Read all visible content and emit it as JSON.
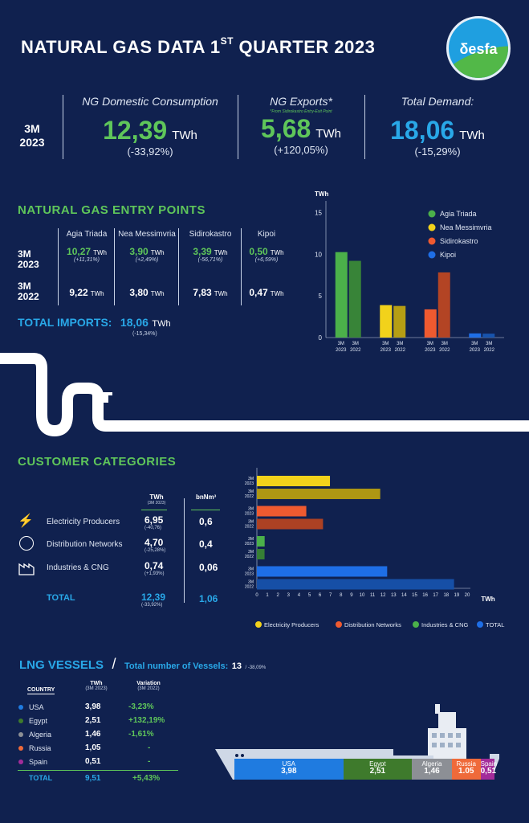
{
  "header": {
    "title_pre": "NATURAL GAS DATA 1",
    "title_sup": "ST",
    "title_post": " QUARTER 2023",
    "logo_text": "δesfa"
  },
  "kpis": {
    "period": "3M 2023",
    "items": [
      {
        "label": "NG Domestic Consumption",
        "note": "",
        "value": "12,39",
        "unit": "TWh",
        "variation": "(-33,92%)",
        "color": "#5fc65a"
      },
      {
        "label": "NG Exports*",
        "note": "*From Sidirokastro Entry-Exit Point",
        "value": "5,68",
        "unit": "TWh",
        "variation": "(+120,05%)",
        "color": "#5fc65a"
      },
      {
        "label": "Total Demand:",
        "note": "",
        "value": "18,06",
        "unit": "TWh",
        "variation": "(-15,29%)",
        "color": "#29a8e8"
      }
    ]
  },
  "entry_points": {
    "title": "NATURAL GAS ENTRY POINTS",
    "columns": [
      "Agia Triada",
      "Nea Messimvria",
      "Sidirokastro",
      "Kipoi"
    ],
    "rows": [
      {
        "label": "3M 2023",
        "values": [
          "10,27",
          "3,90",
          "3,39",
          "0,50"
        ],
        "variations": [
          "(+11,31%)",
          "(+2,49%)",
          "(-56,71%)",
          "(+6,59%)"
        ]
      },
      {
        "label": "3M 2022",
        "values": [
          "9,22",
          "3,80",
          "7,83",
          "0,47"
        ],
        "variations": [
          "",
          "",
          "",
          ""
        ]
      }
    ],
    "unit": "TWh",
    "total_label": "TOTAL IMPORTS:",
    "total_value": "18,06",
    "total_unit": "TWh",
    "total_variation": "(-15,34%)"
  },
  "customers": {
    "title": "CUSTOMER CATEGORIES",
    "col_twh": "TWh",
    "col_twh_sub": "(3M 2023)",
    "col_bnm": "bnNm³",
    "rows": [
      {
        "name": "Electricity Producers",
        "icon": "power-tower-icon",
        "twh": "6,95",
        "variation": "(-40,76)",
        "bnm": "0,6"
      },
      {
        "name": "Distribution Networks",
        "icon": "globe-network-icon",
        "twh": "4,70",
        "variation": "(-25,28%)",
        "bnm": "0,4"
      },
      {
        "name": "Industries & CNG",
        "icon": "factory-icon",
        "twh": "0,74",
        "variation": "(+1,93%)",
        "bnm": "0,06"
      }
    ],
    "total_label": "TOTAL",
    "total_twh": "12,39",
    "total_variation": "(-33,92%)",
    "total_bnm": "1,06"
  },
  "lng": {
    "title": "LNG VESSELS",
    "subtitle": "Total number of Vessels:",
    "vessels": "13",
    "vessels_var": "/ -38,09%",
    "col_country": "COUNTRY",
    "col_twh": "TWh",
    "col_twh_sub": "(3M 2023)",
    "col_var": "Variation",
    "col_var_sub": "(3M 2022)",
    "rows": [
      {
        "country": "USA",
        "twh": "3,98",
        "variation": "-3,23%",
        "color": "#1f7be0",
        "hull_value": "3,98"
      },
      {
        "country": "Egypt",
        "twh": "2,51",
        "variation": "+132,19%",
        "color": "#3e7a2c",
        "hull_value": "2,51"
      },
      {
        "country": "Algeria",
        "twh": "1,46",
        "variation": "-1,61%",
        "color": "#8c8f95",
        "hull_value": "1,46"
      },
      {
        "country": "Russia",
        "twh": "1,05",
        "variation": "-",
        "color": "#ef6a3a",
        "hull_value": "1.05"
      },
      {
        "country": "Spain",
        "twh": "0,51",
        "variation": "-",
        "color": "#a32c9a",
        "hull_value": "0,51"
      }
    ],
    "total_label": "TOTAL",
    "total_twh": "9,51",
    "total_var": "+5,43%"
  },
  "chart_data": [
    {
      "type": "bar",
      "ylabel": "TWh",
      "ylim": [
        0,
        17
      ],
      "yticks": [
        0,
        5,
        10,
        15
      ],
      "categories": [
        "Agia Triada",
        "Nea Messimvria",
        "Sidirokastro",
        "Kipoi"
      ],
      "period_labels": [
        "3M",
        "3M",
        "2023",
        "2022"
      ],
      "series": [
        {
          "name": "3M 2023",
          "values": [
            10.27,
            3.9,
            3.39,
            0.5
          ]
        },
        {
          "name": "3M 2022",
          "values": [
            9.22,
            3.8,
            7.83,
            0.47
          ]
        }
      ],
      "colors": [
        "#4bb04a",
        "#f2d21b",
        "#ef5a30",
        "#1e6ee6"
      ],
      "legend": [
        "Agia Triada",
        "Nea Messimvria",
        "Sidirokastro",
        "Kipoi"
      ],
      "legend_position": "top-right"
    },
    {
      "type": "bar",
      "orientation": "horizontal",
      "xlabel": "TWh",
      "xlim": [
        0,
        20
      ],
      "xticks": [
        0,
        1,
        2,
        3,
        4,
        5,
        6,
        7,
        8,
        9,
        10,
        11,
        12,
        13,
        14,
        15,
        16,
        17,
        18,
        19,
        20
      ],
      "groups": [
        "Electricity Producers",
        "Distribution Networks",
        "Industries & CNG",
        "TOTAL"
      ],
      "period_labels": [
        "3M 2023",
        "3M 2022"
      ],
      "series": [
        {
          "name": "3M 2023",
          "values": [
            6.95,
            4.7,
            0.74,
            12.39
          ]
        },
        {
          "name": "3M 2022",
          "values": [
            11.73,
            6.29,
            0.73,
            18.75
          ]
        }
      ],
      "colors": [
        "#f2d21b",
        "#ef5a30",
        "#4bb04a",
        "#1e6ee6"
      ],
      "legend": [
        "Electricity Producers",
        "Distribution Networks",
        "Industries & CNG",
        "TOTAL"
      ],
      "legend_position": "bottom"
    }
  ]
}
